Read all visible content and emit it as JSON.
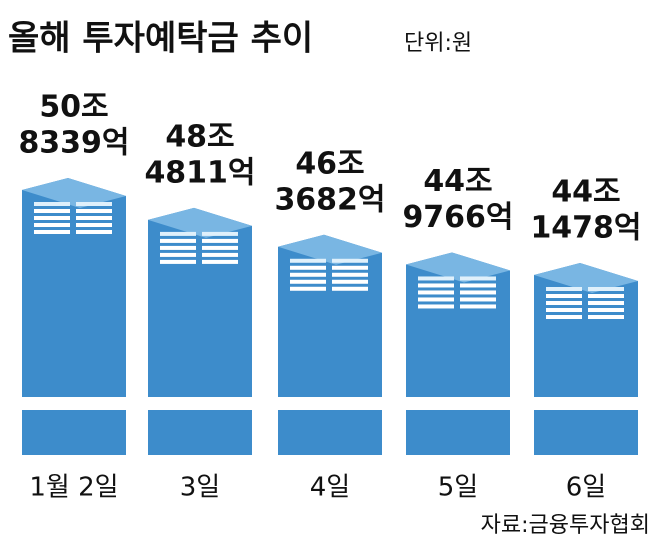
{
  "chart_data": {
    "type": "bar",
    "title": "올해 투자예탁금 추이",
    "unit": "단위:원",
    "categories": [
      "1월 2일",
      "3일",
      "4일",
      "5일",
      "6일"
    ],
    "values": [
      508339,
      484811,
      463682,
      449766,
      441478
    ],
    "value_labels": [
      [
        "50조",
        "8339억"
      ],
      [
        "48조",
        "4811억"
      ],
      [
        "46조",
        "3682억"
      ],
      [
        "44조",
        "9766억"
      ],
      [
        "44조",
        "1478억"
      ]
    ],
    "color": "#3d8ccb",
    "source": "자료:금융투자협회"
  }
}
